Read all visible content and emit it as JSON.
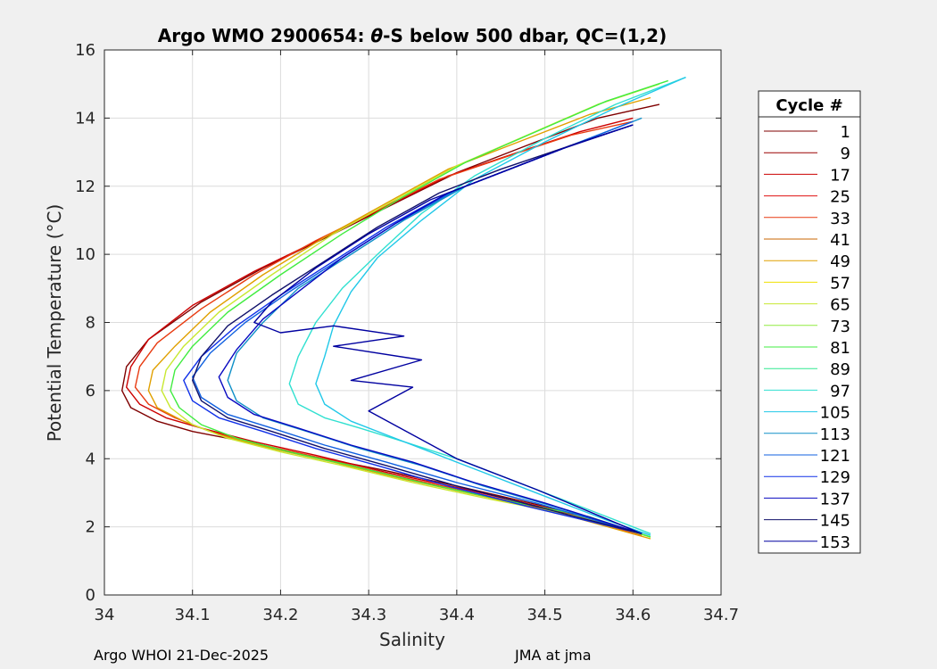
{
  "chart_data": {
    "type": "line",
    "title_main": "Argo WMO 2900654: ",
    "title_theta": "θ",
    "title_rest": "-S below 500 dbar,  QC=(1,2)",
    "xlabel": "Salinity",
    "ylabel": "Potential Temperature (°C)",
    "xlim": [
      34,
      34.7
    ],
    "ylim": [
      0,
      16
    ],
    "x_ticks": [
      "34",
      "34.1",
      "34.2",
      "34.3",
      "34.4",
      "34.5",
      "34.6",
      "34.7"
    ],
    "y_ticks": [
      "0",
      "2",
      "4",
      "6",
      "8",
      "10",
      "12",
      "14",
      "16"
    ],
    "grid": true,
    "legend": {
      "title": "Cycle #",
      "placement": "right",
      "entries": [
        {
          "label": "1",
          "color": "#7f0000"
        },
        {
          "label": "9",
          "color": "#9a0000"
        },
        {
          "label": "17",
          "color": "#cc0000"
        },
        {
          "label": "25",
          "color": "#e01010"
        },
        {
          "label": "33",
          "color": "#e83a10"
        },
        {
          "label": "41",
          "color": "#c86400"
        },
        {
          "label": "49",
          "color": "#e0a000"
        },
        {
          "label": "57",
          "color": "#f0e000"
        },
        {
          "label": "65",
          "color": "#c8e830"
        },
        {
          "label": "73",
          "color": "#90ec40"
        },
        {
          "label": "81",
          "color": "#40ec40"
        },
        {
          "label": "89",
          "color": "#30e890"
        },
        {
          "label": "97",
          "color": "#30e0d0"
        },
        {
          "label": "105",
          "color": "#20c8e8"
        },
        {
          "label": "113",
          "color": "#1090c8"
        },
        {
          "label": "121",
          "color": "#1060e0"
        },
        {
          "label": "129",
          "color": "#1030e8"
        },
        {
          "label": "137",
          "color": "#0808c0"
        },
        {
          "label": "145",
          "color": "#10106a"
        },
        {
          "label": "153",
          "color": "#0000a0"
        }
      ]
    },
    "series": [
      {
        "cycle": "1",
        "color": "#7f0000",
        "x": [
          34.63,
          34.56,
          34.48,
          34.4,
          34.33,
          34.26,
          34.18,
          34.11,
          34.05,
          34.025,
          34.02,
          34.03,
          34.06,
          34.1,
          34.16,
          34.23,
          34.31,
          34.4,
          34.5,
          34.61
        ],
        "y": [
          14.4,
          14.0,
          13.2,
          12.4,
          11.5,
          10.6,
          9.6,
          8.6,
          7.5,
          6.7,
          6.0,
          5.5,
          5.1,
          4.8,
          4.5,
          4.1,
          3.7,
          3.2,
          2.6,
          1.8
        ]
      },
      {
        "cycle": "17",
        "color": "#cc0000",
        "x": [
          34.6,
          34.54,
          34.47,
          34.39,
          34.32,
          34.25,
          34.17,
          34.1,
          34.05,
          34.03,
          34.025,
          34.04,
          34.07,
          34.11,
          34.17,
          34.24,
          34.32,
          34.41,
          34.51,
          34.61
        ],
        "y": [
          14.0,
          13.6,
          13.0,
          12.3,
          11.4,
          10.5,
          9.5,
          8.5,
          7.5,
          6.7,
          6.1,
          5.6,
          5.2,
          4.9,
          4.5,
          4.1,
          3.6,
          3.1,
          2.5,
          1.8
        ]
      },
      {
        "cycle": "33",
        "color": "#e83a10",
        "x": [
          34.6,
          34.53,
          34.46,
          34.38,
          34.31,
          34.24,
          34.17,
          34.11,
          34.06,
          34.04,
          34.035,
          34.05,
          34.08,
          34.12,
          34.18,
          34.25,
          34.33,
          34.42,
          34.52,
          34.61
        ],
        "y": [
          13.9,
          13.5,
          12.9,
          12.2,
          11.3,
          10.4,
          9.4,
          8.4,
          7.4,
          6.7,
          6.1,
          5.6,
          5.2,
          4.8,
          4.4,
          4.0,
          3.5,
          3.0,
          2.4,
          1.75
        ]
      },
      {
        "cycle": "49",
        "color": "#e0a000",
        "x": [
          34.62,
          34.55,
          34.47,
          34.39,
          34.32,
          34.25,
          34.18,
          34.12,
          34.08,
          34.055,
          34.05,
          34.06,
          34.09,
          34.13,
          34.19,
          34.26,
          34.34,
          34.43,
          34.53,
          34.62
        ],
        "y": [
          14.6,
          14.1,
          13.3,
          12.5,
          11.5,
          10.5,
          9.4,
          8.3,
          7.3,
          6.6,
          6.0,
          5.5,
          5.1,
          4.7,
          4.3,
          3.9,
          3.4,
          2.9,
          2.3,
          1.65
        ]
      },
      {
        "cycle": "65",
        "color": "#c8e830",
        "x": [
          34.63,
          34.56,
          34.48,
          34.4,
          34.33,
          34.26,
          34.19,
          34.13,
          34.09,
          34.07,
          34.065,
          34.075,
          34.1,
          34.14,
          34.2,
          34.27,
          34.35,
          34.44,
          34.54,
          34.62
        ],
        "y": [
          15.0,
          14.4,
          13.5,
          12.6,
          11.6,
          10.6,
          9.4,
          8.3,
          7.3,
          6.6,
          6.0,
          5.5,
          5.0,
          4.6,
          4.2,
          3.8,
          3.3,
          2.8,
          2.3,
          1.7
        ]
      },
      {
        "cycle": "81",
        "color": "#40ec40",
        "x": [
          34.64,
          34.57,
          34.49,
          34.41,
          34.34,
          34.27,
          34.2,
          34.14,
          34.1,
          34.08,
          34.075,
          34.085,
          34.11,
          34.15,
          34.21,
          34.28,
          34.36,
          34.45,
          34.55,
          34.62
        ],
        "y": [
          15.1,
          14.5,
          13.6,
          12.7,
          11.7,
          10.6,
          9.4,
          8.3,
          7.3,
          6.6,
          6.0,
          5.5,
          5.0,
          4.6,
          4.2,
          3.8,
          3.3,
          2.8,
          2.3,
          1.7
        ]
      },
      {
        "cycle": "97",
        "color": "#30e0d0",
        "x": [
          34.66,
          34.58,
          34.5,
          34.42,
          34.36,
          34.31,
          34.27,
          34.24,
          34.22,
          34.21,
          34.22,
          34.25,
          34.29,
          34.34,
          34.4,
          34.47,
          34.55,
          34.62
        ],
        "y": [
          15.2,
          14.4,
          13.4,
          12.3,
          11.2,
          10.0,
          9.0,
          8.0,
          7.0,
          6.2,
          5.6,
          5.2,
          4.9,
          4.5,
          4.0,
          3.3,
          2.5,
          1.8
        ]
      },
      {
        "cycle": "105",
        "color": "#20c8e8",
        "x": [
          34.66,
          34.58,
          34.5,
          34.42,
          34.36,
          34.31,
          34.28,
          34.26,
          34.25,
          34.24,
          34.25,
          34.28,
          34.32,
          34.37,
          34.43,
          34.5,
          34.57,
          34.62
        ],
        "y": [
          15.2,
          14.3,
          13.3,
          12.2,
          11.0,
          9.9,
          8.9,
          7.9,
          7.0,
          6.2,
          5.6,
          5.1,
          4.7,
          4.2,
          3.6,
          2.9,
          2.2,
          1.75
        ]
      },
      {
        "cycle": "113",
        "color": "#1090c8",
        "x": [
          34.61,
          34.55,
          34.48,
          34.41,
          34.34,
          34.28,
          34.22,
          34.18,
          34.15,
          34.14,
          34.15,
          34.18,
          34.23,
          34.29,
          34.36,
          34.43,
          34.51,
          34.61
        ],
        "y": [
          14.0,
          13.4,
          12.7,
          12.0,
          11.0,
          10.0,
          9.0,
          8.0,
          7.1,
          6.3,
          5.7,
          5.2,
          4.8,
          4.3,
          3.8,
          3.2,
          2.6,
          1.8
        ]
      },
      {
        "cycle": "121",
        "color": "#1060e0",
        "x": [
          34.6,
          34.54,
          34.47,
          34.4,
          34.33,
          34.27,
          34.21,
          34.16,
          34.12,
          34.1,
          34.11,
          34.14,
          34.19,
          34.25,
          34.32,
          34.4,
          34.49,
          34.61
        ],
        "y": [
          13.9,
          13.3,
          12.6,
          11.9,
          10.9,
          9.9,
          8.9,
          8.0,
          7.1,
          6.4,
          5.8,
          5.3,
          4.9,
          4.4,
          3.9,
          3.3,
          2.7,
          1.8
        ]
      },
      {
        "cycle": "129",
        "color": "#1030e8",
        "x": [
          34.6,
          34.53,
          34.46,
          34.39,
          34.32,
          34.26,
          34.2,
          34.15,
          34.11,
          34.09,
          34.1,
          34.13,
          34.18,
          34.24,
          34.31,
          34.39,
          34.48,
          34.61
        ],
        "y": [
          13.8,
          13.2,
          12.5,
          11.8,
          10.8,
          9.8,
          8.8,
          7.9,
          7.0,
          6.3,
          5.7,
          5.2,
          4.8,
          4.3,
          3.8,
          3.2,
          2.6,
          1.8
        ]
      },
      {
        "cycle": "137",
        "color": "#0808c0",
        "x": [
          34.6,
          34.53,
          34.46,
          34.39,
          34.33,
          34.27,
          34.22,
          34.18,
          34.15,
          34.13,
          34.14,
          34.17,
          34.22,
          34.28,
          34.35,
          34.42,
          34.5,
          34.61
        ],
        "y": [
          13.8,
          13.2,
          12.5,
          11.8,
          10.9,
          9.9,
          8.9,
          8.1,
          7.2,
          6.4,
          5.8,
          5.3,
          4.9,
          4.4,
          3.9,
          3.3,
          2.7,
          1.8
        ]
      },
      {
        "cycle": "145",
        "color": "#10106a",
        "x": [
          34.6,
          34.53,
          34.45,
          34.38,
          34.31,
          34.25,
          34.19,
          34.14,
          34.11,
          34.1,
          34.11,
          34.14,
          34.19,
          34.25,
          34.32,
          34.4,
          34.49,
          34.61
        ],
        "y": [
          13.8,
          13.2,
          12.5,
          11.8,
          10.8,
          9.8,
          8.8,
          7.9,
          7.0,
          6.3,
          5.7,
          5.2,
          4.8,
          4.3,
          3.8,
          3.2,
          2.6,
          1.8
        ]
      },
      {
        "cycle": "153",
        "color": "#0000a0",
        "x": [
          34.6,
          34.52,
          34.44,
          34.37,
          34.3,
          34.24,
          34.19,
          34.17,
          34.2,
          34.26,
          34.34,
          34.26,
          34.36,
          34.28,
          34.35,
          34.3,
          34.4,
          34.49,
          34.61
        ],
        "y": [
          13.8,
          13.1,
          12.3,
          11.6,
          10.6,
          9.6,
          8.6,
          8.0,
          7.7,
          7.9,
          7.6,
          7.3,
          6.9,
          6.3,
          6.1,
          5.4,
          4.0,
          3.1,
          1.8
        ]
      }
    ]
  },
  "footer": {
    "left": "Argo WHOI 21-Dec-2025",
    "right": "JMA at jma"
  }
}
